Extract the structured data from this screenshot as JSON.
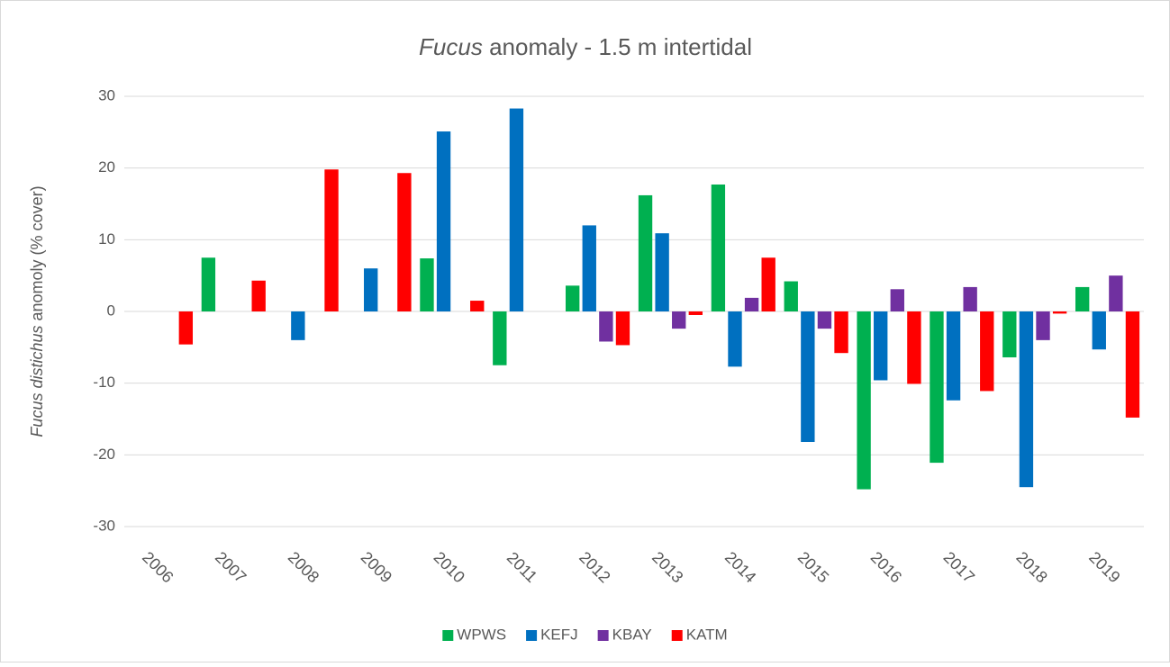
{
  "chart_data": {
    "type": "bar",
    "title": [
      "Fucus",
      "anomaly - 1.5 m intertidal"
    ],
    "y_label": [
      "Fucus distichus",
      "anomoly (% cover)"
    ],
    "categories": [
      "2006",
      "2007",
      "2008",
      "2009",
      "2010",
      "2011",
      "2012",
      "2013",
      "2014",
      "2015",
      "2016",
      "2017",
      "2018",
      "2019"
    ],
    "series": [
      {
        "name": "WPWS",
        "color": "#00b050",
        "values": [
          null,
          7.5,
          null,
          null,
          7.4,
          -7.5,
          3.6,
          16.2,
          17.7,
          4.2,
          -24.8,
          -21.1,
          -6.4,
          3.4
        ]
      },
      {
        "name": "KEFJ",
        "color": "#0070c0",
        "values": [
          null,
          null,
          -4.0,
          6.0,
          25.1,
          28.3,
          12.0,
          10.9,
          -7.7,
          -18.2,
          -9.6,
          -12.4,
          -24.5,
          -5.3
        ]
      },
      {
        "name": "KBAY",
        "color": "#7030a0",
        "values": [
          null,
          null,
          null,
          null,
          null,
          null,
          -4.2,
          -2.4,
          1.9,
          -2.4,
          3.1,
          3.4,
          -4.0,
          5.0
        ]
      },
      {
        "name": "KATM",
        "color": "#ff0000",
        "values": [
          -4.6,
          4.3,
          19.8,
          19.3,
          1.5,
          null,
          -4.7,
          -0.5,
          7.5,
          -5.8,
          -10.1,
          -11.1,
          -0.3,
          -14.8
        ]
      }
    ],
    "ylim": [
      -30,
      30
    ],
    "yticks": [
      -30,
      -20,
      -10,
      0,
      10,
      20,
      30
    ],
    "grid": true,
    "legend": "bottom"
  }
}
